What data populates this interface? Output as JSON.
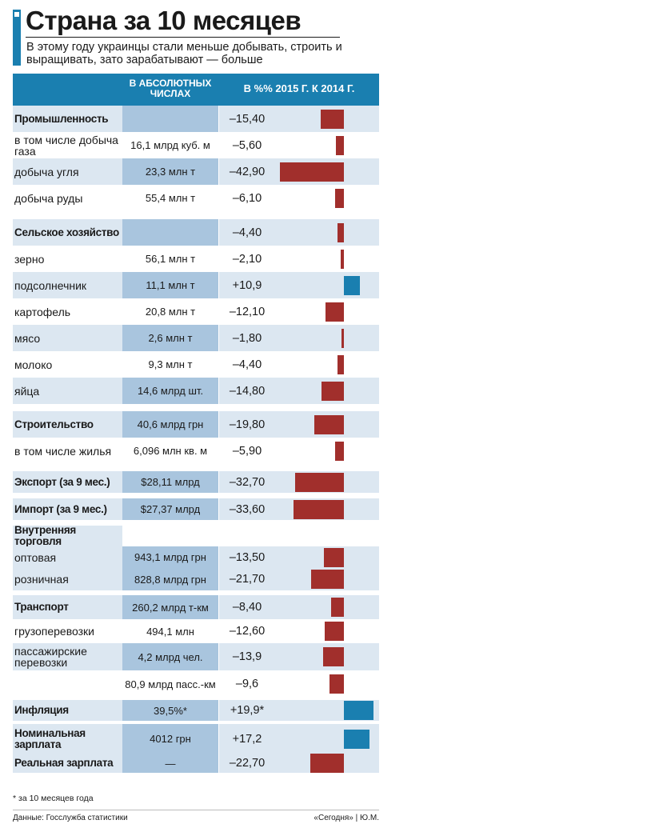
{
  "title": "Страна за 10 месяцев",
  "subtitle": "В этому году украинцы стали меньше добывать, строить и выращивать, зато зарабатывают — больше",
  "columns": {
    "absolute": "В абсолютных числах",
    "percent": "В %% 2015 г. к 2014 г."
  },
  "colors": {
    "accent": "#1a7fb0",
    "negative": "#a12f2c",
    "positive": "#1a7fb0",
    "row_shade": "#dce7f1",
    "cell_shade": "#a9c5de"
  },
  "chart_data": {
    "type": "bar",
    "orientation": "horizontal",
    "value_axis": "percent change 2015 vs 2014",
    "rows": [
      {
        "label": "Промышленность",
        "absolute": "",
        "display": "–15,40",
        "value": -15.4,
        "bold": true
      },
      {
        "label": "в том числе добыча газа",
        "absolute": "16,1 млрд куб. м",
        "display": "–5,60",
        "value": -5.6,
        "bold": false
      },
      {
        "label": "добыча угля",
        "absolute": "23,3 млн т",
        "display": "–42,90",
        "value": -42.9,
        "bold": false
      },
      {
        "label": "добыча руды",
        "absolute": "55,4 млн т",
        "display": "–6,10",
        "value": -6.1,
        "bold": false
      },
      {
        "label": "Сельское хозяйство",
        "absolute": "",
        "display": "–4,40",
        "value": -4.4,
        "bold": true
      },
      {
        "label": "зерно",
        "absolute": "56,1 млн т",
        "display": "–2,10",
        "value": -2.1,
        "bold": false
      },
      {
        "label": "подсолнечник",
        "absolute": "11,1 млн т",
        "display": "+10,9",
        "value": 10.9,
        "bold": false
      },
      {
        "label": "картофель",
        "absolute": "20,8 млн т",
        "display": "–12,10",
        "value": -12.1,
        "bold": false
      },
      {
        "label": "мясо",
        "absolute": "2,6 млн т",
        "display": "–1,80",
        "value": -1.8,
        "bold": false
      },
      {
        "label": "молоко",
        "absolute": "9,3 млн т",
        "display": "–4,40",
        "value": -4.4,
        "bold": false
      },
      {
        "label": "яйца",
        "absolute": "14,6 млрд шт.",
        "display": "–14,80",
        "value": -14.8,
        "bold": false
      },
      {
        "label": "Строительство",
        "absolute": "40,6 млрд грн",
        "display": "–19,80",
        "value": -19.8,
        "bold": true
      },
      {
        "label": "в том числе жилья",
        "absolute": "6,096 млн кв. м",
        "display": "–5,90",
        "value": -5.9,
        "bold": false
      },
      {
        "label": "Экспорт (за 9 мес.)",
        "absolute": "$28,11 млрд",
        "display": "–32,70",
        "value": -32.7,
        "bold": true
      },
      {
        "label": "Импорт (за 9 мес.)",
        "absolute": "$27,37 млрд",
        "display": "–33,60",
        "value": -33.6,
        "bold": true
      },
      {
        "label": "Внутренняя торговля",
        "absolute": "",
        "display": "",
        "value": null,
        "bold": true
      },
      {
        "label": "оптовая",
        "absolute": "943,1 млрд грн",
        "display": "–13,50",
        "value": -13.5,
        "bold": false
      },
      {
        "label": "розничная",
        "absolute": "828,8 млрд грн",
        "display": "–21,70",
        "value": -21.7,
        "bold": false
      },
      {
        "label": "Транспорт",
        "absolute": "260,2 млрд т-км",
        "display": "–8,40",
        "value": -8.4,
        "bold": true
      },
      {
        "label": "грузоперевозки",
        "absolute": "494,1 млн",
        "display": "–12,60",
        "value": -12.6,
        "bold": false
      },
      {
        "label": "пассажирские перевозки",
        "absolute": "4,2 млрд чел.",
        "display": "–13,9",
        "value": -13.9,
        "bold": false
      },
      {
        "label": "",
        "absolute": "80,9 млрд пасс.-км",
        "display": "–9,6",
        "value": -9.6,
        "bold": false
      },
      {
        "label": "Инфляция",
        "absolute": "39,5%*",
        "display": "+19,9*",
        "value": 19.9,
        "bold": true
      },
      {
        "label": "Номинальная зарплата",
        "absolute": "4012 грн",
        "display": "+17,2",
        "value": 17.2,
        "bold": true
      },
      {
        "label": "Реальная зарплата",
        "absolute": "—",
        "display": "–22,70",
        "value": -22.7,
        "bold": true
      }
    ]
  },
  "footnote": "* за 10 месяцев года",
  "source": "Данные: Госслужба статистики",
  "credit": "«Сегодня» | Ю.М."
}
